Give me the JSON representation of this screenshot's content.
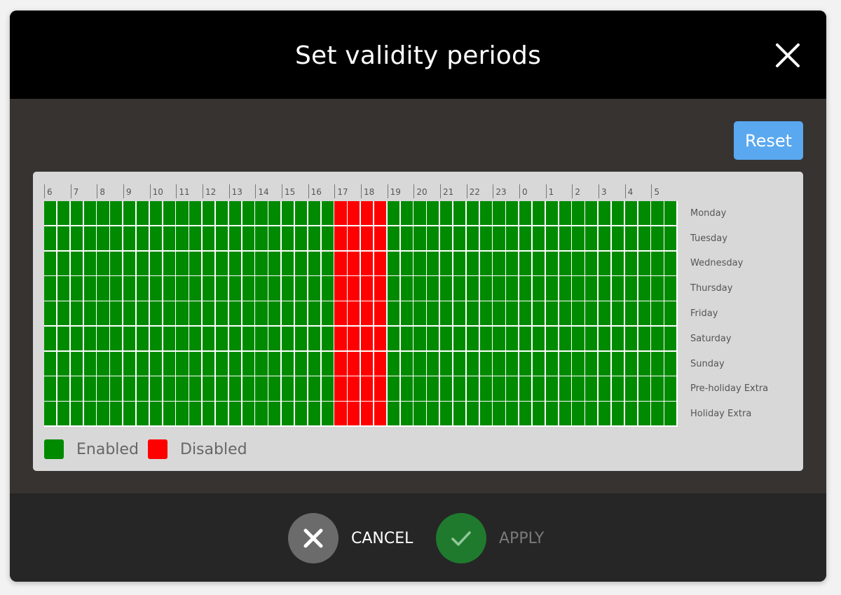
{
  "dialog": {
    "title": "Set validity periods",
    "close_icon": "close-icon",
    "reset_label": "Reset"
  },
  "schedule": {
    "hours": [
      "6",
      "7",
      "8",
      "9",
      "10",
      "11",
      "12",
      "13",
      "14",
      "15",
      "16",
      "17",
      "18",
      "19",
      "20",
      "21",
      "22",
      "23",
      "0",
      "1",
      "2",
      "3",
      "4",
      "5"
    ],
    "slots_per_hour": 2,
    "days": [
      "Monday",
      "Tuesday",
      "Wednesday",
      "Thursday",
      "Friday",
      "Saturday",
      "Sunday",
      "Pre-holiday Extra",
      "Holiday Extra"
    ],
    "disabled_hours": [
      "17",
      "18"
    ],
    "colors": {
      "enabled": "#008a00",
      "disabled": "#ff0000"
    }
  },
  "legend": {
    "enabled_label": "Enabled",
    "disabled_label": "Disabled"
  },
  "footer": {
    "cancel_label": "CANCEL",
    "apply_label": "APPLY",
    "cancel_icon": "x-icon",
    "apply_icon": "check-icon",
    "cancel_color": "#6b6b6b",
    "apply_color": "#1f7a2e"
  }
}
